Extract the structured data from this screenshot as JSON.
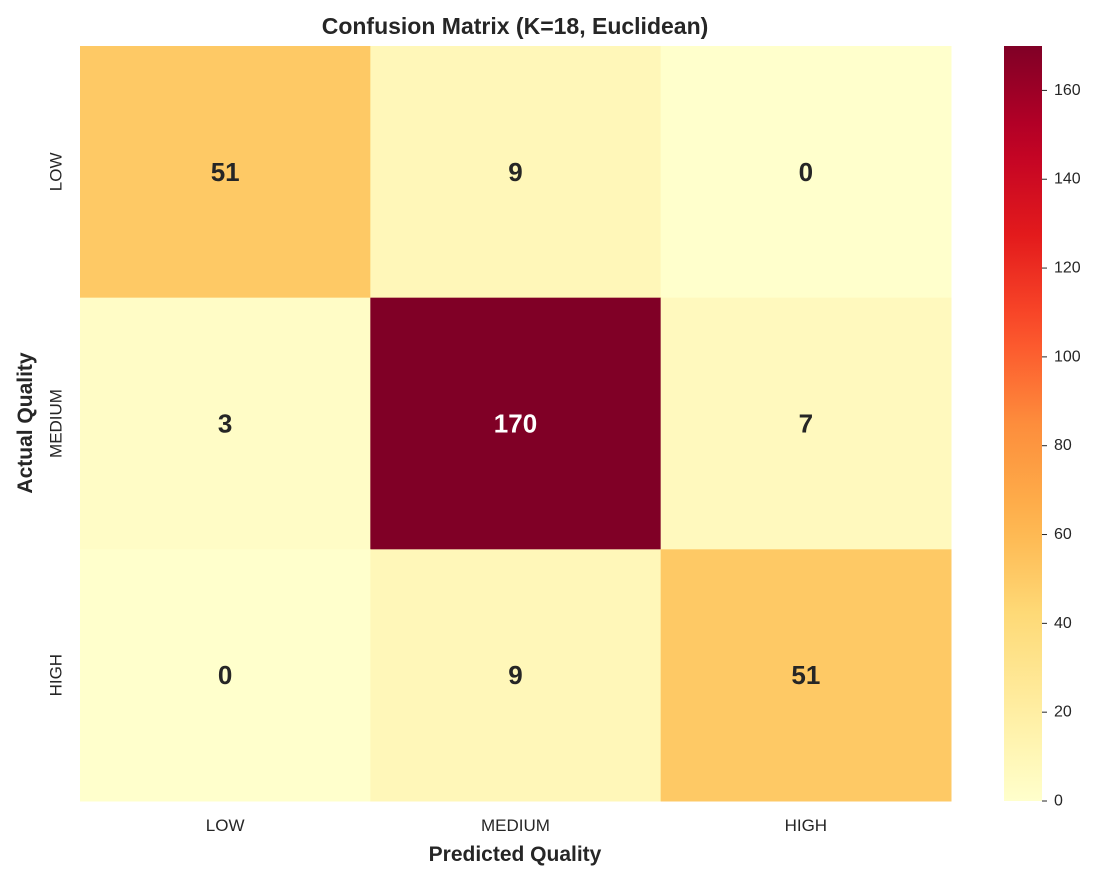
{
  "chart_data": {
    "type": "heatmap",
    "title": "Confusion Matrix (K=18, Euclidean)",
    "xlabel": "Predicted Quality",
    "ylabel": "Actual Quality",
    "x_categories": [
      "LOW",
      "MEDIUM",
      "HIGH"
    ],
    "y_categories": [
      "LOW",
      "MEDIUM",
      "HIGH"
    ],
    "values": [
      [
        51,
        9,
        0
      ],
      [
        3,
        170,
        7
      ],
      [
        0,
        9,
        51
      ]
    ],
    "colormap": "YlOrRd",
    "colorbar": {
      "range": [
        0,
        170
      ],
      "ticks": [
        0,
        20,
        40,
        60,
        80,
        100,
        120,
        140,
        160
      ]
    },
    "grid": false
  }
}
